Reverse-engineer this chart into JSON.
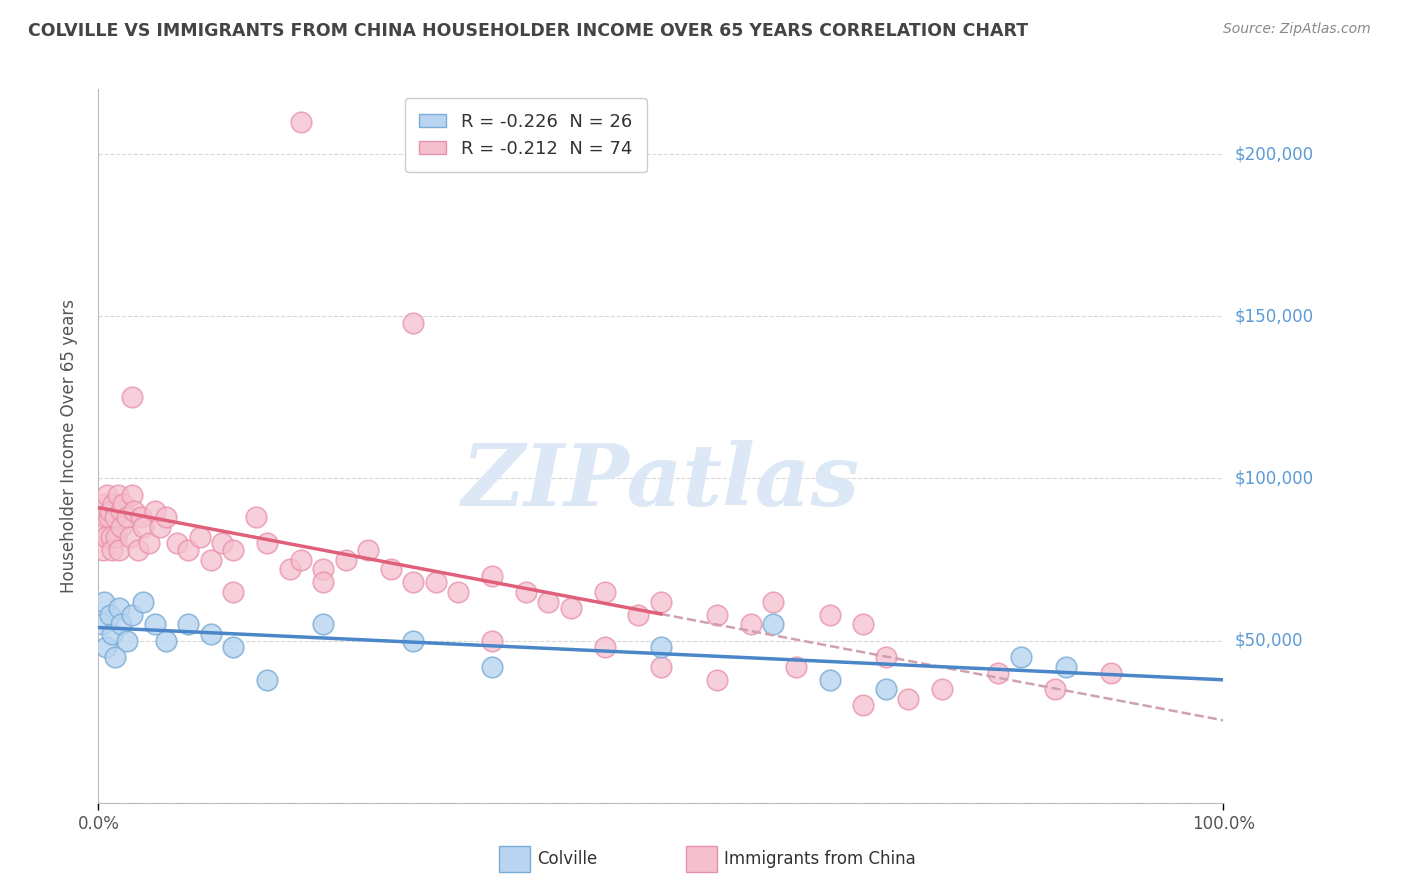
{
  "title": "COLVILLE VS IMMIGRANTS FROM CHINA HOUSEHOLDER INCOME OVER 65 YEARS CORRELATION CHART",
  "source": "Source: ZipAtlas.com",
  "ylabel": "Householder Income Over 65 years",
  "legend_row1": "R = -0.226  N = 26",
  "legend_row2": "R = -0.212  N = 74",
  "bottom_label1": "Colville",
  "bottom_label2": "Immigrants from China",
  "colville_color": "#b8d4f0",
  "colville_edge": "#7aadd6",
  "china_color": "#f5c0ce",
  "china_edge": "#e890aa",
  "trend_blue": "#4a86c8",
  "trend_pink": "#e0607a",
  "trend_dashed": "#d0a0b0",
  "watermark_color": "#dce8f5",
  "grid_color": "#d8d8d8",
  "background": "#ffffff",
  "right_label_color": "#5b9bd5",
  "title_color": "#444444",
  "axis_label_color": "#555555",
  "xlim": [
    0,
    100
  ],
  "ylim": [
    0,
    220000
  ],
  "yticks": [
    0,
    50000,
    100000,
    150000,
    200000
  ],
  "ytick_labels": [
    "",
    "$50,000",
    "$100,000",
    "$150,000",
    "$200,000"
  ],
  "colville_x": [
    0.3,
    0.5,
    0.7,
    1.0,
    1.2,
    1.5,
    1.8,
    2.0,
    2.5,
    3.0,
    4.0,
    5.0,
    6.0,
    8.0,
    10.0,
    12.0,
    15.0,
    20.0,
    28.0,
    35.0,
    50.0,
    60.0,
    65.0,
    70.0,
    82.0,
    86.0
  ],
  "colville_y": [
    55000,
    62000,
    48000,
    58000,
    52000,
    45000,
    60000,
    55000,
    50000,
    58000,
    62000,
    55000,
    50000,
    55000,
    52000,
    48000,
    38000,
    55000,
    50000,
    42000,
    48000,
    55000,
    38000,
    35000,
    45000,
    42000
  ],
  "china_x": [
    0.2,
    0.4,
    0.5,
    0.6,
    0.7,
    0.8,
    0.9,
    1.0,
    1.1,
    1.2,
    1.3,
    1.5,
    1.6,
    1.7,
    1.8,
    2.0,
    2.0,
    2.2,
    2.5,
    2.8,
    3.0,
    3.2,
    3.5,
    3.8,
    4.0,
    4.5,
    5.0,
    5.5,
    6.0,
    7.0,
    8.0,
    9.0,
    10.0,
    11.0,
    12.0,
    14.0,
    15.0,
    17.0,
    18.0,
    20.0,
    22.0,
    24.0,
    26.0,
    28.0,
    30.0,
    32.0,
    35.0,
    38.0,
    40.0,
    42.0,
    45.0,
    48.0,
    50.0,
    55.0,
    58.0,
    60.0,
    65.0,
    68.0,
    70.0,
    12.0,
    20.0,
    35.0,
    45.0,
    50.0,
    55.0,
    62.0,
    68.0,
    72.0,
    75.0,
    80.0,
    85.0,
    90.0,
    3.0,
    28.0
  ],
  "china_y": [
    85000,
    78000,
    92000,
    88000,
    82000,
    95000,
    88000,
    90000,
    82000,
    78000,
    92000,
    88000,
    82000,
    95000,
    78000,
    90000,
    85000,
    92000,
    88000,
    82000,
    95000,
    90000,
    78000,
    88000,
    85000,
    80000,
    90000,
    85000,
    88000,
    80000,
    78000,
    82000,
    75000,
    80000,
    78000,
    88000,
    80000,
    72000,
    75000,
    72000,
    75000,
    78000,
    72000,
    68000,
    68000,
    65000,
    70000,
    65000,
    62000,
    60000,
    65000,
    58000,
    62000,
    58000,
    55000,
    62000,
    58000,
    55000,
    45000,
    65000,
    68000,
    50000,
    48000,
    42000,
    38000,
    42000,
    30000,
    32000,
    35000,
    40000,
    35000,
    40000,
    125000,
    148000
  ],
  "china_outlier_x": [
    18.0
  ],
  "china_outlier_y": [
    210000
  ],
  "figsize": [
    14.06,
    8.92
  ],
  "dpi": 100
}
